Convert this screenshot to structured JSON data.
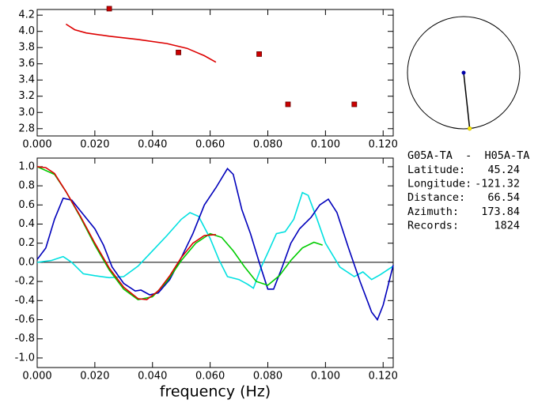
{
  "chart_data": [
    {
      "type": "scatter-line",
      "xlim": [
        0,
        0.1235
      ],
      "ylim": [
        2.71,
        4.27
      ],
      "xticks": [
        {
          "value": 0,
          "label": "0.000"
        },
        {
          "value": 0.02,
          "label": "0.020"
        },
        {
          "value": 0.04,
          "label": "0.040"
        },
        {
          "value": 0.06,
          "label": "0.060"
        },
        {
          "value": 0.08,
          "label": "0.080"
        },
        {
          "value": 0.1,
          "label": "0.100"
        },
        {
          "value": 0.12,
          "label": "0.120"
        }
      ],
      "yticks": [
        {
          "value": 2.8,
          "label": "2.8"
        },
        {
          "value": 3.0,
          "label": "3.0"
        },
        {
          "value": 3.2,
          "label": "3.2"
        },
        {
          "value": 3.4,
          "label": "3.4"
        },
        {
          "value": 3.6,
          "label": "3.6"
        },
        {
          "value": 3.8,
          "label": "3.8"
        },
        {
          "value": 4.0,
          "label": "4.0"
        },
        {
          "value": 4.2,
          "label": "4.2"
        }
      ],
      "points": {
        "color": "#cc0000",
        "x": [
          0.025,
          0.049,
          0.077,
          0.087,
          0.11
        ],
        "values": [
          4.28,
          3.74,
          3.72,
          3.1,
          3.1
        ]
      },
      "series": [
        {
          "color": "#dd0000",
          "x": [
            0.01,
            0.013,
            0.017,
            0.025,
            0.035,
            0.045,
            0.052,
            0.058,
            0.062
          ],
          "values": [
            4.09,
            4.02,
            3.98,
            3.94,
            3.9,
            3.85,
            3.79,
            3.7,
            3.62
          ]
        }
      ]
    },
    {
      "type": "line",
      "x_label": "frequency (Hz)",
      "xlim": [
        0,
        0.1235
      ],
      "ylim": [
        -1.1,
        1.09
      ],
      "xticks": [
        {
          "value": 0,
          "label": "0.000"
        },
        {
          "value": 0.02,
          "label": "0.020"
        },
        {
          "value": 0.04,
          "label": "0.040"
        },
        {
          "value": 0.06,
          "label": "0.060"
        },
        {
          "value": 0.08,
          "label": "0.080"
        },
        {
          "value": 0.1,
          "label": "0.100"
        },
        {
          "value": 0.12,
          "label": "0.120"
        }
      ],
      "yticks": [
        {
          "value": -1.0,
          "label": "-1.0"
        },
        {
          "value": -0.8,
          "label": "-0.8"
        },
        {
          "value": -0.6,
          "label": "-0.6"
        },
        {
          "value": -0.4,
          "label": "-0.4"
        },
        {
          "value": -0.2,
          "label": "-0.2"
        },
        {
          "value": 0.0,
          "label": "0.0"
        },
        {
          "value": 0.2,
          "label": "0.2"
        },
        {
          "value": 0.4,
          "label": "0.4"
        },
        {
          "value": 0.6,
          "label": "0.6"
        },
        {
          "value": 0.8,
          "label": "0.8"
        },
        {
          "value": 1.0,
          "label": "1.0"
        }
      ],
      "series": [
        {
          "color": "#00e0e0",
          "x": [
            0,
            0.005,
            0.009,
            0.012,
            0.016,
            0.02,
            0.025,
            0.03,
            0.035,
            0.04,
            0.045,
            0.05,
            0.053,
            0.056,
            0.06,
            0.063,
            0.066,
            0.07,
            0.073,
            0.075,
            0.078,
            0.08,
            0.083,
            0.086,
            0.089,
            0.092,
            0.094,
            0.097,
            0.1,
            0.105,
            0.11,
            0.113,
            0.116,
            0.119,
            0.1235
          ],
          "values": [
            0.0,
            0.02,
            0.06,
            0.0,
            -0.12,
            -0.14,
            -0.16,
            -0.15,
            -0.04,
            0.12,
            0.28,
            0.45,
            0.52,
            0.48,
            0.25,
            0.03,
            -0.15,
            -0.18,
            -0.23,
            -0.27,
            -0.03,
            0.1,
            0.3,
            0.32,
            0.45,
            0.73,
            0.7,
            0.46,
            0.2,
            -0.05,
            -0.15,
            -0.1,
            -0.18,
            -0.13,
            -0.04
          ]
        },
        {
          "color": "#0000bb",
          "x": [
            0,
            0.003,
            0.006,
            0.009,
            0.012,
            0.016,
            0.02,
            0.023,
            0.026,
            0.03,
            0.034,
            0.036,
            0.039,
            0.042,
            0.046,
            0.05,
            0.054,
            0.058,
            0.062,
            0.066,
            0.068,
            0.071,
            0.074,
            0.077,
            0.08,
            0.082,
            0.085,
            0.088,
            0.091,
            0.095,
            0.098,
            0.101,
            0.104,
            0.108,
            0.112,
            0.116,
            0.118,
            0.12,
            0.1235
          ],
          "values": [
            0.03,
            0.15,
            0.45,
            0.67,
            0.65,
            0.5,
            0.35,
            0.18,
            -0.05,
            -0.22,
            -0.3,
            -0.29,
            -0.34,
            -0.32,
            -0.18,
            0.05,
            0.3,
            0.6,
            0.78,
            0.98,
            0.92,
            0.55,
            0.3,
            0.0,
            -0.28,
            -0.28,
            -0.05,
            0.2,
            0.35,
            0.47,
            0.6,
            0.66,
            0.52,
            0.15,
            -0.2,
            -0.52,
            -0.6,
            -0.45,
            -0.03
          ]
        },
        {
          "color": "#00cc00",
          "x": [
            0,
            0.006,
            0.01,
            0.015,
            0.02,
            0.025,
            0.03,
            0.035,
            0.04,
            0.045,
            0.05,
            0.055,
            0.06,
            0.064,
            0.068,
            0.072,
            0.076,
            0.08,
            0.084,
            0.088,
            0.092,
            0.096,
            0.099
          ],
          "values": [
            1.0,
            0.92,
            0.74,
            0.47,
            0.18,
            -0.08,
            -0.28,
            -0.39,
            -0.36,
            -0.2,
            0.02,
            0.2,
            0.3,
            0.26,
            0.12,
            -0.05,
            -0.2,
            -0.24,
            -0.14,
            0.02,
            0.15,
            0.21,
            0.18
          ]
        },
        {
          "color": "#dd0000",
          "x": [
            0,
            0.003,
            0.006,
            0.01,
            0.015,
            0.02,
            0.025,
            0.03,
            0.035,
            0.038,
            0.042,
            0.046,
            0.05,
            0.054,
            0.058,
            0.062
          ],
          "values": [
            1.0,
            0.99,
            0.93,
            0.74,
            0.48,
            0.2,
            -0.06,
            -0.26,
            -0.38,
            -0.39,
            -0.3,
            -0.14,
            0.05,
            0.2,
            0.28,
            0.29
          ]
        }
      ]
    }
  ],
  "info": {
    "pair": "G05A-TA  -  H05A-TA",
    "rows": [
      [
        "Latitude:",
        45.24
      ],
      [
        "Longitude:",
        -121.32
      ],
      [
        "Distance:",
        66.54
      ],
      [
        "Azimuth:",
        173.84
      ],
      [
        "Records:",
        1824
      ]
    ],
    "azimuth": 173.84
  }
}
